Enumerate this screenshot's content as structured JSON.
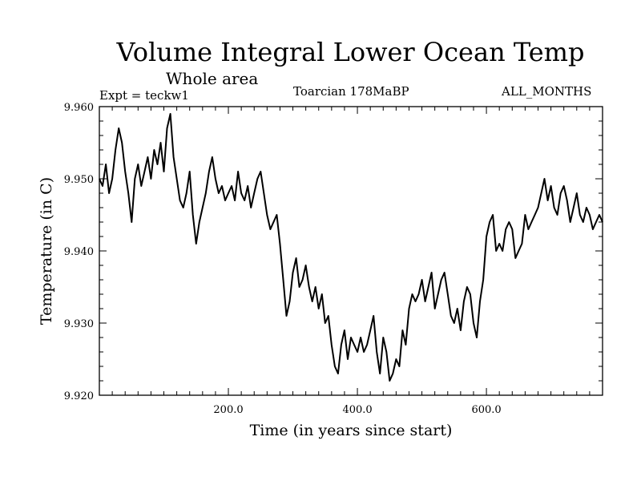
{
  "chart_data": {
    "type": "line",
    "title": "Volume Integral Lower Ocean Temp",
    "subtitle": "Whole area",
    "annotation_left": "Expt = teckw1",
    "annotation_center": "Toarcian 178MaBP",
    "annotation_right": "ALL_MONTHS",
    "xlabel": "Time (in years since start)",
    "ylabel": "Temperature (in C)",
    "xlim": [
      0,
      780
    ],
    "ylim": [
      9.92,
      9.96
    ],
    "xticks": [
      200,
      400,
      600
    ],
    "xtick_labels": [
      "200.0",
      "400.0",
      "600.0"
    ],
    "yticks": [
      9.92,
      9.93,
      9.94,
      9.95,
      9.96
    ],
    "ytick_labels": [
      "9.920",
      "9.930",
      "9.940",
      "9.950",
      "9.960"
    ],
    "series": [
      {
        "name": "Volume Integral Lower Ocean Temp",
        "color": "#000000",
        "x": [
          0,
          5,
          10,
          15,
          20,
          25,
          30,
          35,
          40,
          45,
          50,
          55,
          60,
          65,
          70,
          75,
          80,
          85,
          90,
          95,
          100,
          105,
          110,
          115,
          120,
          125,
          130,
          135,
          140,
          145,
          150,
          155,
          160,
          165,
          170,
          175,
          180,
          185,
          190,
          195,
          200,
          205,
          210,
          215,
          220,
          225,
          230,
          235,
          240,
          245,
          250,
          255,
          260,
          265,
          270,
          275,
          280,
          285,
          290,
          295,
          300,
          305,
          310,
          315,
          320,
          325,
          330,
          335,
          340,
          345,
          350,
          355,
          360,
          365,
          370,
          375,
          380,
          385,
          390,
          395,
          400,
          405,
          410,
          415,
          420,
          425,
          430,
          435,
          440,
          445,
          450,
          455,
          460,
          465,
          470,
          475,
          480,
          485,
          490,
          495,
          500,
          505,
          510,
          515,
          520,
          525,
          530,
          535,
          540,
          545,
          550,
          555,
          560,
          565,
          570,
          575,
          580,
          585,
          590,
          595,
          600,
          605,
          610,
          615,
          620,
          625,
          630,
          635,
          640,
          645,
          650,
          655,
          660,
          665,
          670,
          675,
          680,
          685,
          690,
          695,
          700,
          705,
          710,
          715,
          720,
          725,
          730,
          735,
          740,
          745,
          750,
          755,
          760,
          765,
          770,
          775,
          780
        ],
        "values": [
          9.95,
          9.949,
          9.952,
          9.948,
          9.95,
          9.954,
          9.957,
          9.955,
          9.951,
          9.948,
          9.944,
          9.95,
          9.952,
          9.949,
          9.951,
          9.953,
          9.95,
          9.954,
          9.952,
          9.955,
          9.951,
          9.957,
          9.959,
          9.953,
          9.95,
          9.947,
          9.946,
          9.948,
          9.951,
          9.945,
          9.941,
          9.944,
          9.946,
          9.948,
          9.951,
          9.953,
          9.95,
          9.948,
          9.949,
          9.947,
          9.948,
          9.949,
          9.947,
          9.951,
          9.948,
          9.947,
          9.949,
          9.946,
          9.948,
          9.95,
          9.951,
          9.948,
          9.945,
          9.943,
          9.944,
          9.945,
          9.941,
          9.936,
          9.931,
          9.933,
          9.937,
          9.939,
          9.935,
          9.936,
          9.938,
          9.935,
          9.933,
          9.935,
          9.932,
          9.934,
          9.93,
          9.931,
          9.927,
          9.924,
          9.923,
          9.927,
          9.929,
          9.925,
          9.928,
          9.927,
          9.926,
          9.928,
          9.926,
          9.927,
          9.929,
          9.931,
          9.926,
          9.923,
          9.928,
          9.926,
          9.922,
          9.923,
          9.925,
          9.924,
          9.929,
          9.927,
          9.932,
          9.934,
          9.933,
          9.934,
          9.936,
          9.933,
          9.935,
          9.937,
          9.932,
          9.934,
          9.936,
          9.937,
          9.934,
          9.931,
          9.93,
          9.932,
          9.929,
          9.933,
          9.935,
          9.934,
          9.93,
          9.928,
          9.933,
          9.936,
          9.942,
          9.944,
          9.945,
          9.94,
          9.941,
          9.94,
          9.943,
          9.944,
          9.943,
          9.939,
          9.94,
          9.941,
          9.945,
          9.943,
          9.944,
          9.945,
          9.946,
          9.948,
          9.95,
          9.947,
          9.949,
          9.946,
          9.945,
          9.948,
          9.949,
          9.947,
          9.944,
          9.946,
          9.948,
          9.945,
          9.944,
          9.946,
          9.945,
          9.943,
          9.944,
          9.945,
          9.944
        ]
      }
    ]
  }
}
